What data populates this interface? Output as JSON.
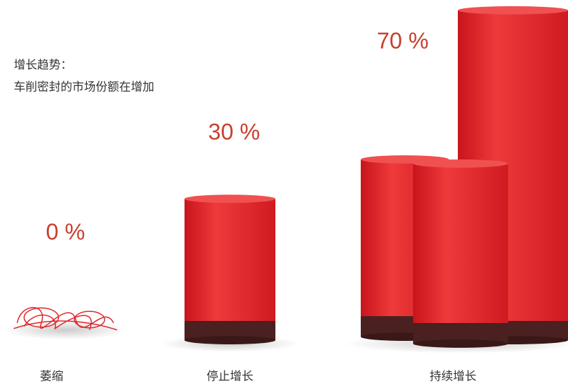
{
  "chart_data": {
    "type": "pictorial",
    "title": "增长趋势：",
    "subtitle": "车削密封的市场份额在增加",
    "categories": [
      "萎缩",
      "停止增长",
      "持续增长"
    ],
    "values": [
      0,
      30,
      70
    ],
    "value_labels": [
      "0 %",
      "30 %",
      "70 %"
    ],
    "color": "#e0242a"
  }
}
